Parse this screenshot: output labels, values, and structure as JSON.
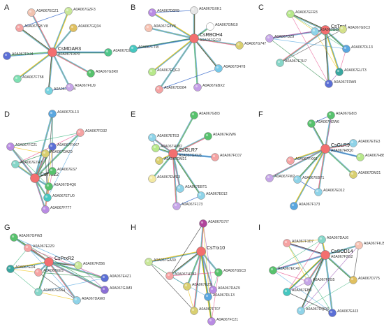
{
  "figure": {
    "panels": [
      {
        "letter": "A",
        "hub": "CsMDAR3",
        "nodes": [
          {
            "label": "A0A067ECZ1",
            "color": "#f0c2b0"
          },
          {
            "label": "A0A067GZF3",
            "color": "#c9e79a"
          },
          {
            "label": "A0A067GB V8",
            "color": "#f5a3a3"
          },
          {
            "label": "A0A067GQ34",
            "color": "#e0c060"
          },
          {
            "label": "A0A067FXJ4",
            "color": "#5b6fd6"
          },
          {
            "label": "A0A067FXP0",
            "color": "#f36f6f"
          },
          {
            "label": "A0A067D250",
            "color": "#4fc78b"
          },
          {
            "label": "A0A067G3R0",
            "color": "#57c26d"
          },
          {
            "label": "A0A067FT58",
            "color": "#7ee0b3"
          },
          {
            "label": "A0A067FC84",
            "color": "#78d3e0"
          },
          {
            "label": "A0A067FIU9",
            "color": "#c6a6e8"
          }
        ]
      },
      {
        "letter": "B",
        "hub": "CsRBOH4",
        "nodes": [
          {
            "label": "A0A067D6R9",
            "color": "#b98be3"
          },
          {
            "label": "A0A067GXK1",
            "color": "#e6e6e6"
          },
          {
            "label": "A0A067G8V8",
            "color": "#f7c3b3"
          },
          {
            "label": "A0A067GM10",
            "color": "#ffffff"
          },
          {
            "label": "A0A067GCI3",
            "color": "#f36f6f"
          },
          {
            "label": "A0A067FTI8",
            "color": "#46c7c0"
          },
          {
            "label": "A0A067G747",
            "color": "#d9cf70"
          },
          {
            "label": "A0A067FQG3",
            "color": "#b7e88b"
          },
          {
            "label": "A0A067D4Y8",
            "color": "#77c9e8"
          },
          {
            "label": "A0A067DD84",
            "color": "#f5a3a3"
          },
          {
            "label": "A0A067EBX2",
            "color": "#c49ee6"
          }
        ]
      },
      {
        "letter": "C",
        "hub": "CsTrx4",
        "nodes": [
          {
            "label": "A0A067EFR3",
            "color": "#b7e88b"
          },
          {
            "label": "A0A067GC82",
            "color": "#8fd3e8"
          },
          {
            "label": "A0A067G5C3",
            "color": "#d4e08a"
          },
          {
            "label": "A0A067DZ9",
            "color": "#c6a6e8"
          },
          {
            "label": "A0A067DL13",
            "color": "#5aa7e0"
          },
          {
            "label": "A0A067E7H7",
            "color": "#86d6c8"
          },
          {
            "label": "A0A067EUT3",
            "color": "#3aa7a0"
          },
          {
            "label": "A0A067F0W9",
            "color": "#5b6fd6"
          }
        ]
      },
      {
        "letter": "D",
        "hub": "CsTrx22",
        "nodes": [
          {
            "label": "A0A067DL13",
            "color": "#5aa7e0"
          },
          {
            "label": "A0A067FD32",
            "color": "#f5a3a3"
          },
          {
            "label": "A0A067FC21",
            "color": "#b98be3"
          },
          {
            "label": "A0A067FXK7",
            "color": "#5b6fd6"
          },
          {
            "label": "A0A067DAZ9",
            "color": "#d9cf70"
          },
          {
            "label": "A0A067E7H7",
            "color": "#86d6c8"
          },
          {
            "label": "A0A067ES7",
            "color": "#57c26d"
          },
          {
            "label": "A0A067D4Q6",
            "color": "#57c26d"
          },
          {
            "label": "A0A067ETU0",
            "color": "#46c7c0"
          },
          {
            "label": "A0A067F777",
            "color": "#b98be3"
          }
        ]
      },
      {
        "letter": "E",
        "hub": "CsGLR7",
        "nodes": [
          {
            "label": "A0A067G8I3",
            "color": "#57c26d"
          },
          {
            "label": "A0A067ETE3",
            "color": "#8fd3e8"
          },
          {
            "label": "A0A067H882",
            "color": "#b7e88b"
          },
          {
            "label": "A0A067H2W6",
            "color": "#57c26d"
          },
          {
            "label": "A0A067DM21",
            "color": "#d9cf70"
          },
          {
            "label": "A0A067GXU3",
            "color": "#f36f6f"
          },
          {
            "label": "A0A067FC07",
            "color": "#f5a3a3"
          },
          {
            "label": "A0A067EWE3",
            "color": "#f3e9a3"
          },
          {
            "label": "A0A067EBT1",
            "color": "#8fd3e8"
          },
          {
            "label": "A0A067E012",
            "color": "#8fd3e8"
          },
          {
            "label": "A0A067F173",
            "color": "#c6a6e8"
          }
        ]
      },
      {
        "letter": "F",
        "hub": "CsGLR9",
        "nodes": [
          {
            "label": "A0A067G8I3",
            "color": "#57c26d"
          },
          {
            "label": "A0A067H2W6",
            "color": "#57c26d"
          },
          {
            "label": "A0A067ETE3",
            "color": "#8fd3e8"
          },
          {
            "label": "A0A067FXK6",
            "color": "#f5a3a3"
          },
          {
            "label": "A0A067H8Q0",
            "color": "#f36f6f"
          },
          {
            "label": "A0A067H882",
            "color": "#b7e88b"
          },
          {
            "label": "A0A067DM21",
            "color": "#d9cf70"
          },
          {
            "label": "A0A067FW2",
            "color": "#c6a6e8"
          },
          {
            "label": "A0A067EBT1",
            "color": "#8fd3e8"
          },
          {
            "label": "A0A067E012",
            "color": "#8fd3e8"
          },
          {
            "label": "A0A067F173",
            "color": "#5aa7e0"
          }
        ]
      },
      {
        "letter": "G",
        "hub": "CsPrxR2",
        "nodes": [
          {
            "label": "A0A067GFW3",
            "color": "#57c26d"
          },
          {
            "label": "A0A067E2Z9",
            "color": "#f5a3a3"
          },
          {
            "label": "A0A067ED4",
            "color": "#3aa7a0"
          },
          {
            "label": "A0A067FZB6",
            "color": "#c9e79a"
          },
          {
            "label": "A0A067EES",
            "color": "#f5a3a3"
          },
          {
            "label": "A0A067E4Z1",
            "color": "#5b6fd6"
          },
          {
            "label": "A0A067GJM3",
            "color": "#8b6fd6"
          },
          {
            "label": "A0A067E8X4",
            "color": "#86d6c8"
          },
          {
            "label": "A0A067DAW0",
            "color": "#8fd3e8"
          }
        ]
      },
      {
        "letter": "H",
        "hub": "CsTrx10",
        "nodes": [
          {
            "label": "A0A067G7I7",
            "color": "#b0449b"
          },
          {
            "label": "A0A067GA30",
            "color": "#c9e79a"
          },
          {
            "label": "A0A067HT82",
            "color": "#f5a3a3"
          },
          {
            "label": "A0A067G5C3",
            "color": "#57c26d"
          },
          {
            "label": "A0A067EZ9",
            "color": "#d9cf70"
          },
          {
            "label": "A0A067DAZ9",
            "color": "#b98be3"
          },
          {
            "label": "A0A067DL13",
            "color": "#5aa7e0"
          },
          {
            "label": "A0A067FT07",
            "color": "#d9cf70"
          },
          {
            "label": "A0A067FC21",
            "color": "#b98be3"
          }
        ]
      },
      {
        "letter": "I",
        "hub": "CsSOD14",
        "nodes": [
          {
            "label": "A0A067DAJ6",
            "color": "#86d6c8"
          },
          {
            "label": "A0A067F1D7",
            "color": "#f5a3a3"
          },
          {
            "label": "A0A067FKJ5",
            "color": "#f7c3b3"
          },
          {
            "label": "A0A067F2G2",
            "color": "#f36f6f"
          },
          {
            "label": "A0A067EC49",
            "color": "#57c26d"
          },
          {
            "label": "A0A067D775",
            "color": "#e0c060"
          },
          {
            "label": "A0A067F2G5",
            "color": "#c6a6e8"
          },
          {
            "label": "A0A067EB3",
            "color": "#46c7c0"
          },
          {
            "label": "A0A067DQD3",
            "color": "#8fd3e8"
          },
          {
            "label": "A0A067E4J3",
            "color": "#5b6fd6"
          }
        ]
      }
    ]
  }
}
